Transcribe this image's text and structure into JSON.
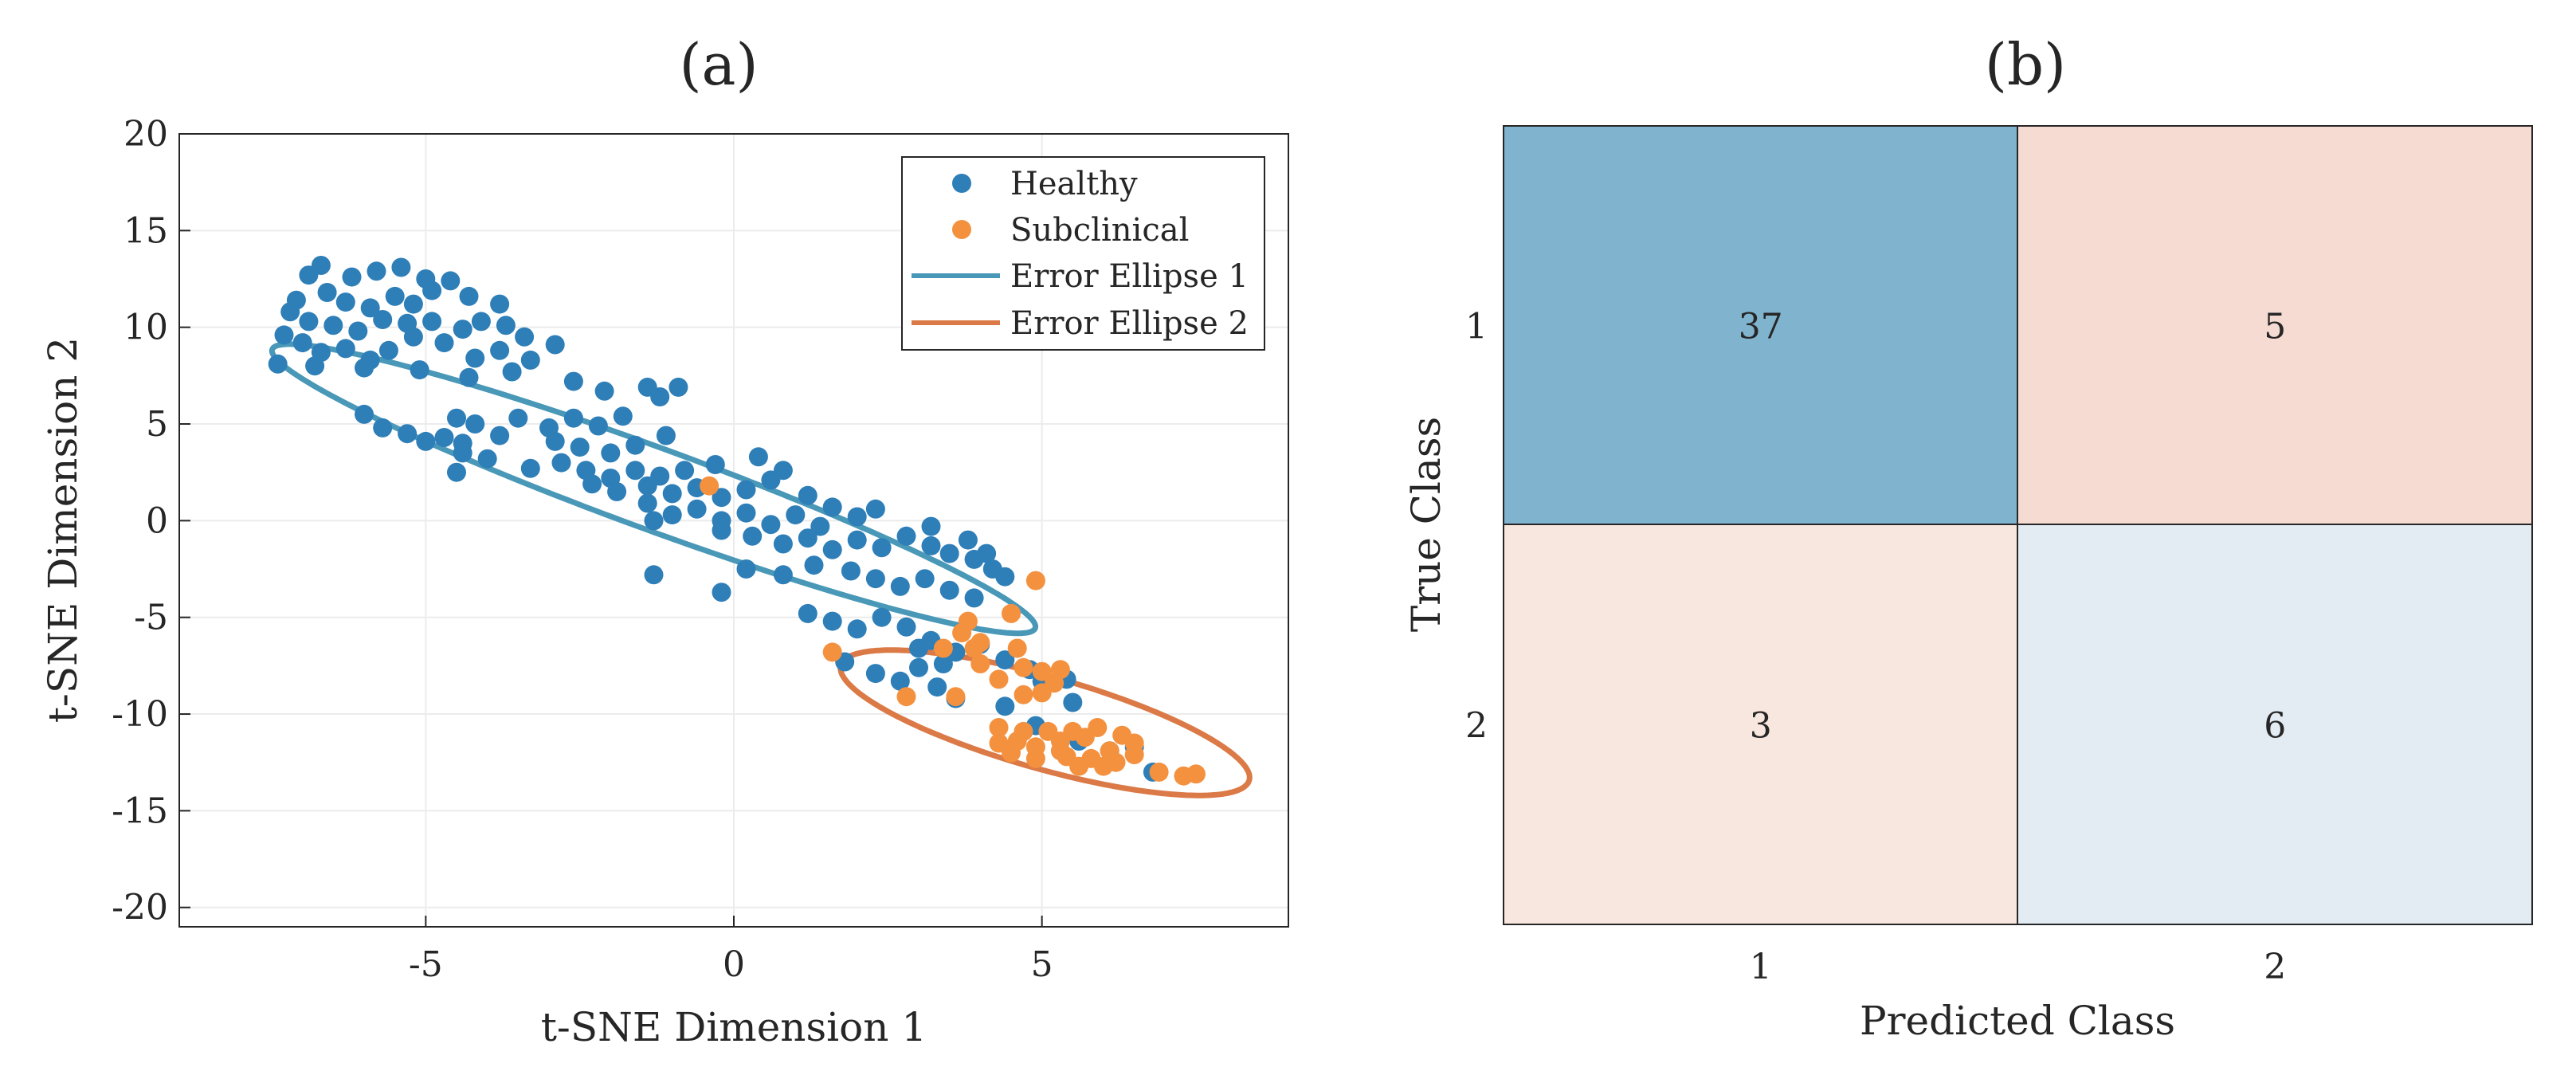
{
  "chart_data": [
    {
      "panel_label": "(a)",
      "type": "scatter",
      "xlabel": "t-SNE Dimension 1",
      "ylabel": "t-SNE Dimension 2",
      "xlim": [
        -9,
        9
      ],
      "ylim": [
        -21,
        20
      ],
      "xticks": [
        -5,
        0,
        5
      ],
      "yticks": [
        20,
        15,
        10,
        5,
        0,
        -5,
        -10,
        -15,
        -20
      ],
      "grid": true,
      "legend_position": "top-right",
      "series": [
        {
          "name": "Healthy",
          "color": "#2e7eb8",
          "points": [
            [
              -6.7,
              13.2
            ],
            [
              -6.2,
              12.6
            ],
            [
              -5.8,
              12.9
            ],
            [
              -5.4,
              13.1
            ],
            [
              -5.0,
              12.5
            ],
            [
              -4.6,
              12.4
            ],
            [
              -6.9,
              12.7
            ],
            [
              -7.1,
              11.4
            ],
            [
              -6.6,
              11.8
            ],
            [
              -6.3,
              11.3
            ],
            [
              -5.9,
              11.0
            ],
            [
              -5.5,
              11.6
            ],
            [
              -5.2,
              11.2
            ],
            [
              -4.9,
              11.9
            ],
            [
              -4.3,
              11.6
            ],
            [
              -3.8,
              11.2
            ],
            [
              -7.2,
              10.8
            ],
            [
              -6.9,
              10.3
            ],
            [
              -6.5,
              10.1
            ],
            [
              -6.1,
              9.8
            ],
            [
              -5.7,
              10.4
            ],
            [
              -5.3,
              10.2
            ],
            [
              -4.9,
              10.3
            ],
            [
              -4.4,
              9.9
            ],
            [
              -4.1,
              10.3
            ],
            [
              -3.7,
              10.1
            ],
            [
              -3.4,
              9.5
            ],
            [
              -7.3,
              9.6
            ],
            [
              -7.0,
              9.2
            ],
            [
              -6.7,
              8.7
            ],
            [
              -6.3,
              8.9
            ],
            [
              -5.9,
              8.3
            ],
            [
              -5.6,
              8.8
            ],
            [
              -5.2,
              9.5
            ],
            [
              -4.7,
              9.2
            ],
            [
              -4.2,
              8.4
            ],
            [
              -3.8,
              8.8
            ],
            [
              -3.3,
              8.3
            ],
            [
              -2.9,
              9.1
            ],
            [
              -7.4,
              8.1
            ],
            [
              -6.8,
              8.0
            ],
            [
              -6.0,
              7.9
            ],
            [
              -5.1,
              7.8
            ],
            [
              -4.3,
              7.4
            ],
            [
              -3.6,
              7.7
            ],
            [
              -2.6,
              7.2
            ],
            [
              -2.1,
              6.7
            ],
            [
              -1.4,
              6.9
            ],
            [
              -1.2,
              6.4
            ],
            [
              -0.9,
              6.9
            ],
            [
              -6.0,
              5.5
            ],
            [
              -5.7,
              4.8
            ],
            [
              -5.3,
              4.5
            ],
            [
              -5.0,
              4.1
            ],
            [
              -4.7,
              4.3
            ],
            [
              -4.4,
              4.0
            ],
            [
              -4.5,
              5.3
            ],
            [
              -4.2,
              5.0
            ],
            [
              -3.8,
              4.4
            ],
            [
              -4.0,
              3.2
            ],
            [
              -4.4,
              3.5
            ],
            [
              -4.5,
              2.5
            ],
            [
              -3.5,
              5.3
            ],
            [
              -3.0,
              4.8
            ],
            [
              -2.6,
              5.3
            ],
            [
              -2.2,
              4.9
            ],
            [
              -1.8,
              5.4
            ],
            [
              -2.9,
              4.1
            ],
            [
              -2.5,
              3.8
            ],
            [
              -2.0,
              3.5
            ],
            [
              -1.6,
              3.9
            ],
            [
              -1.1,
              4.4
            ],
            [
              -3.3,
              2.7
            ],
            [
              -2.8,
              3.0
            ],
            [
              -2.4,
              2.6
            ],
            [
              -2.0,
              2.2
            ],
            [
              -1.6,
              2.6
            ],
            [
              -1.2,
              2.3
            ],
            [
              -0.8,
              2.6
            ],
            [
              -0.3,
              2.9
            ],
            [
              -2.3,
              1.9
            ],
            [
              -1.9,
              1.5
            ],
            [
              -1.4,
              1.8
            ],
            [
              -1.0,
              1.4
            ],
            [
              -0.6,
              1.7
            ],
            [
              -0.2,
              1.2
            ],
            [
              0.2,
              1.6
            ],
            [
              0.6,
              2.1
            ],
            [
              -1.4,
              0.9
            ],
            [
              -1.0,
              0.3
            ],
            [
              -0.6,
              0.6
            ],
            [
              -0.2,
              0.0
            ],
            [
              0.2,
              0.4
            ],
            [
              0.6,
              -0.2
            ],
            [
              1.0,
              0.3
            ],
            [
              1.4,
              -0.3
            ],
            [
              0.4,
              3.3
            ],
            [
              0.8,
              2.6
            ],
            [
              1.2,
              1.3
            ],
            [
              1.6,
              0.7
            ],
            [
              2.0,
              0.2
            ],
            [
              2.3,
              0.6
            ],
            [
              -1.3,
              0.0
            ],
            [
              -0.2,
              -0.5
            ],
            [
              0.3,
              -0.8
            ],
            [
              0.8,
              -1.2
            ],
            [
              1.2,
              -0.9
            ],
            [
              1.6,
              -1.5
            ],
            [
              2.0,
              -1.0
            ],
            [
              2.4,
              -1.4
            ],
            [
              2.8,
              -0.8
            ],
            [
              3.2,
              -1.3
            ],
            [
              3.5,
              -1.7
            ],
            [
              3.9,
              -2.0
            ],
            [
              4.2,
              -2.5
            ],
            [
              4.4,
              -2.9
            ],
            [
              3.2,
              -0.3
            ],
            [
              3.8,
              -1.0
            ],
            [
              4.1,
              -1.7
            ],
            [
              -1.3,
              -2.8
            ],
            [
              0.2,
              -2.5
            ],
            [
              0.8,
              -2.8
            ],
            [
              1.3,
              -2.3
            ],
            [
              1.9,
              -2.6
            ],
            [
              2.3,
              -3.0
            ],
            [
              2.7,
              -3.4
            ],
            [
              3.1,
              -3.0
            ],
            [
              3.5,
              -3.6
            ],
            [
              3.9,
              -4.0
            ],
            [
              1.2,
              -4.8
            ],
            [
              1.6,
              -5.2
            ],
            [
              2.0,
              -5.6
            ],
            [
              2.4,
              -5.0
            ],
            [
              2.8,
              -5.5
            ],
            [
              3.2,
              -6.2
            ],
            [
              3.6,
              -6.8
            ],
            [
              4.0,
              -6.4
            ],
            [
              4.4,
              -7.2
            ],
            [
              4.8,
              -7.7
            ],
            [
              5.0,
              -8.3
            ],
            [
              5.4,
              -8.2
            ],
            [
              5.5,
              -9.4
            ],
            [
              -0.2,
              -3.7
            ],
            [
              1.8,
              -7.3
            ],
            [
              2.3,
              -7.9
            ],
            [
              2.7,
              -8.3
            ],
            [
              3.0,
              -7.6
            ],
            [
              3.3,
              -8.6
            ],
            [
              3.6,
              -9.2
            ],
            [
              4.4,
              -9.6
            ],
            [
              4.9,
              -10.6
            ],
            [
              5.6,
              -11.4
            ],
            [
              6.1,
              -11.9
            ],
            [
              6.5,
              -11.7
            ],
            [
              6.8,
              -13.0
            ],
            [
              3.0,
              -6.6
            ],
            [
              3.4,
              -7.4
            ]
          ]
        },
        {
          "name": "Subclinical",
          "color": "#f4913f",
          "points": [
            [
              -0.4,
              1.8
            ],
            [
              4.9,
              -3.1
            ],
            [
              4.5,
              -4.8
            ],
            [
              3.8,
              -5.2
            ],
            [
              3.7,
              -5.8
            ],
            [
              4.0,
              -6.3
            ],
            [
              3.4,
              -6.6
            ],
            [
              3.9,
              -6.6
            ],
            [
              4.6,
              -6.6
            ],
            [
              1.6,
              -6.8
            ],
            [
              4.0,
              -7.4
            ],
            [
              4.7,
              -7.6
            ],
            [
              5.0,
              -7.8
            ],
            [
              5.3,
              -7.7
            ],
            [
              4.3,
              -8.2
            ],
            [
              5.2,
              -8.4
            ],
            [
              2.8,
              -9.1
            ],
            [
              3.6,
              -9.1
            ],
            [
              4.7,
              -9.0
            ],
            [
              5.0,
              -8.9
            ],
            [
              4.3,
              -10.7
            ],
            [
              4.7,
              -10.9
            ],
            [
              5.1,
              -10.9
            ],
            [
              5.5,
              -10.9
            ],
            [
              5.9,
              -10.7
            ],
            [
              6.3,
              -11.1
            ],
            [
              4.3,
              -11.5
            ],
            [
              4.6,
              -11.4
            ],
            [
              4.9,
              -11.7
            ],
            [
              5.3,
              -11.4
            ],
            [
              5.7,
              -11.2
            ],
            [
              6.1,
              -11.9
            ],
            [
              6.5,
              -11.5
            ],
            [
              4.5,
              -12.0
            ],
            [
              4.9,
              -12.3
            ],
            [
              5.4,
              -12.2
            ],
            [
              5.8,
              -12.3
            ],
            [
              6.2,
              -12.5
            ],
            [
              6.5,
              -12.1
            ],
            [
              5.3,
              -11.9
            ],
            [
              5.6,
              -12.7
            ],
            [
              6.0,
              -12.7
            ],
            [
              6.9,
              -13.0
            ],
            [
              7.5,
              -13.1
            ],
            [
              7.3,
              -13.2
            ]
          ]
        }
      ],
      "ellipses": [
        {
          "name": "Error Ellipse 1",
          "color": "#4a98b8",
          "center": [
            -1.3,
            1.65
          ],
          "semi_axes": [
            9.6,
            1.45
          ],
          "angle_deg": -50.6
        },
        {
          "name": "Error Ellipse 2",
          "color": "#db7a47",
          "center": [
            5.05,
            -10.45
          ],
          "semi_axes": [
            4.7,
            1.75
          ],
          "angle_deg": -49.7
        }
      ]
    },
    {
      "panel_label": "(b)",
      "type": "heatmap",
      "xlabel": "Predicted Class",
      "ylabel": "True Class",
      "x_categories": [
        "1",
        "2"
      ],
      "y_categories": [
        "1",
        "2"
      ],
      "cells": [
        {
          "row": 0,
          "col": 0,
          "value": 37,
          "color": "#80b3cd"
        },
        {
          "row": 0,
          "col": 1,
          "value": 5,
          "color": "#f5dbd1"
        },
        {
          "row": 1,
          "col": 0,
          "value": 3,
          "color": "#f8e7de"
        },
        {
          "row": 1,
          "col": 1,
          "value": 6,
          "color": "#e4ecf3"
        }
      ]
    }
  ]
}
